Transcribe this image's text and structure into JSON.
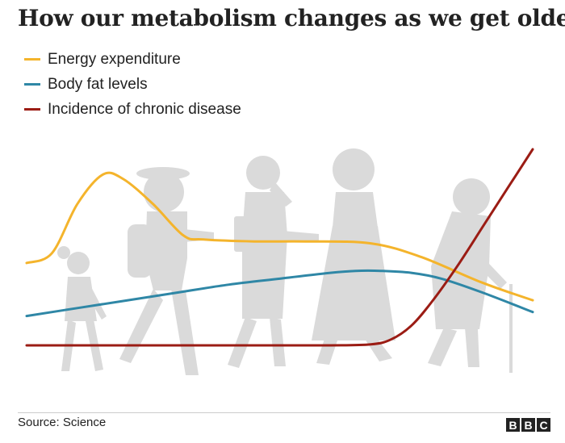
{
  "chart_data": {
    "type": "line",
    "title": "How our metabolism changes as we get older",
    "xlabel": "",
    "ylabel": "",
    "grid": false,
    "legend_position": "top-left",
    "xlim": [
      0,
      100
    ],
    "ylim": [
      0,
      100
    ],
    "series": [
      {
        "name": "Energy expenditure",
        "color": "#f4b42c",
        "x": [
          0,
          5,
          10,
          15,
          19,
          25,
          31,
          35,
          45,
          55,
          68,
          78,
          90,
          100
        ],
        "y": [
          42,
          47,
          72,
          87,
          85,
          72,
          56,
          54,
          53,
          53,
          52,
          45,
          32,
          23
        ]
      },
      {
        "name": "Body fat levels",
        "color": "#2f87a6",
        "x": [
          0,
          10,
          20,
          30,
          40,
          50,
          60,
          65,
          70,
          76,
          82,
          90,
          100
        ],
        "y": [
          15,
          19,
          23,
          27,
          31,
          34,
          37,
          38,
          38,
          37,
          34,
          27,
          17
        ]
      },
      {
        "name": "Incidence of chronic disease",
        "color": "#9b1c14",
        "x": [
          0,
          20,
          40,
          60,
          68,
          72,
          76,
          80,
          85,
          90,
          95,
          100
        ],
        "y": [
          0,
          0,
          0,
          0,
          0.5,
          3,
          10,
          22,
          40,
          60,
          80,
          100
        ]
      }
    ]
  },
  "footer": {
    "source": "Source: Science",
    "logo_letters": [
      "B",
      "B",
      "C"
    ]
  },
  "figure_color": "#dadada"
}
